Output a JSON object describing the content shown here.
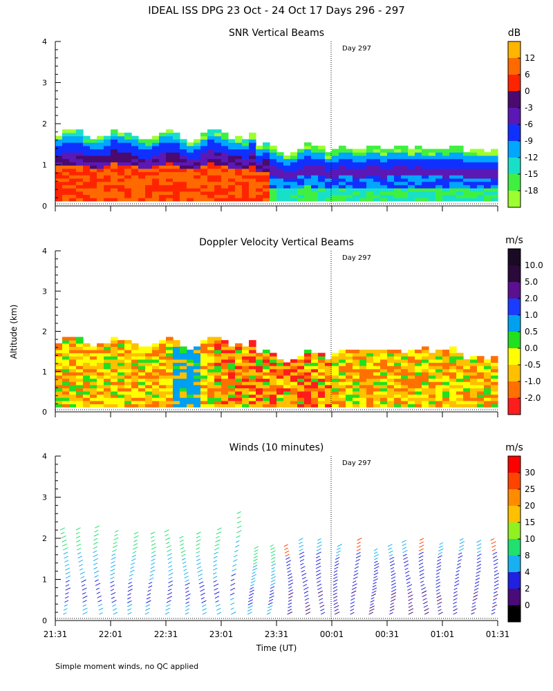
{
  "figure": {
    "title": "IDEAL ISS DPG  23 Oct - 24 Oct 17 Days 296 - 297",
    "ylabel": "Altitude (km)",
    "xlabel": "Time (UT)",
    "footnote": "Simple moment winds, no QC applied",
    "day_marker_label": "Day 297",
    "x_ticks": [
      "21:31",
      "22:01",
      "22:31",
      "23:01",
      "23:31",
      "00:01",
      "00:31",
      "01:01",
      "01:31"
    ],
    "y_ticks": [
      "0",
      "1",
      "2",
      "3",
      "4"
    ]
  },
  "chart_data": [
    {
      "type": "heatmap",
      "id": "snr",
      "title": "SNR Vertical Beams",
      "units": "dB",
      "ylim": [
        0,
        4
      ],
      "xlim": [
        "21:31",
        "01:31"
      ],
      "colorbar": {
        "labels": [
          "12",
          "6",
          "0",
          "-3",
          "-6",
          "-9",
          "-12",
          "-15",
          "-18"
        ],
        "colors": [
          "#ff6a00",
          "#ff2400",
          "#4a0a6e",
          "#5b18b5",
          "#1030ff",
          "#00a6ff",
          "#18e0c8",
          "#40f040",
          "#9cff30"
        ],
        "top_color": "#ffb400"
      },
      "description_levels_km": {
        "typical_top": 1.7,
        "max_top": 1.9,
        "bottom": 0.12
      }
    },
    {
      "type": "heatmap",
      "id": "doppler",
      "title": "Doppler Velocity Vertical Beams",
      "units": "m/s",
      "ylim": [
        0,
        4
      ],
      "xlim": [
        "21:31",
        "01:31"
      ],
      "colorbar": {
        "labels": [
          "10.0",
          "5.0",
          "2.0",
          "1.0",
          "0.5",
          "0.0",
          "-0.5",
          "-1.0",
          "-2.0"
        ],
        "colors": [
          "#2a0a3a",
          "#5a1090",
          "#1a3cff",
          "#00a0f0",
          "#20e020",
          "#ffff00",
          "#ffc000",
          "#ff7000",
          "#ff1c1c"
        ],
        "top_color": "#1a0a24"
      }
    },
    {
      "type": "barbs",
      "id": "winds",
      "title": "Winds (10 minutes)",
      "units": "m/s",
      "ylim": [
        0,
        4
      ],
      "xlim": [
        "21:31",
        "01:31"
      ],
      "profile_interval_minutes": 10,
      "profile_tops_km": [
        2.2,
        2.2,
        2.25,
        2.15,
        2.1,
        2.1,
        2.15,
        2.0,
        2.1,
        2.2,
        2.6,
        1.75,
        1.8,
        1.8,
        1.95,
        1.95,
        1.8,
        1.95,
        1.7,
        1.8,
        1.9,
        1.95,
        1.85,
        1.95,
        1.9,
        1.95
      ],
      "colorbar": {
        "labels": [
          "30",
          "25",
          "20",
          "15",
          "10",
          "8",
          "4",
          "2",
          "0"
        ],
        "colors": [
          "#ff4400",
          "#ff8c00",
          "#ffc000",
          "#90f020",
          "#20e070",
          "#18b0f0",
          "#2020e0",
          "#4a0a78",
          "#000000"
        ],
        "top_color": "#ff0000"
      }
    }
  ]
}
